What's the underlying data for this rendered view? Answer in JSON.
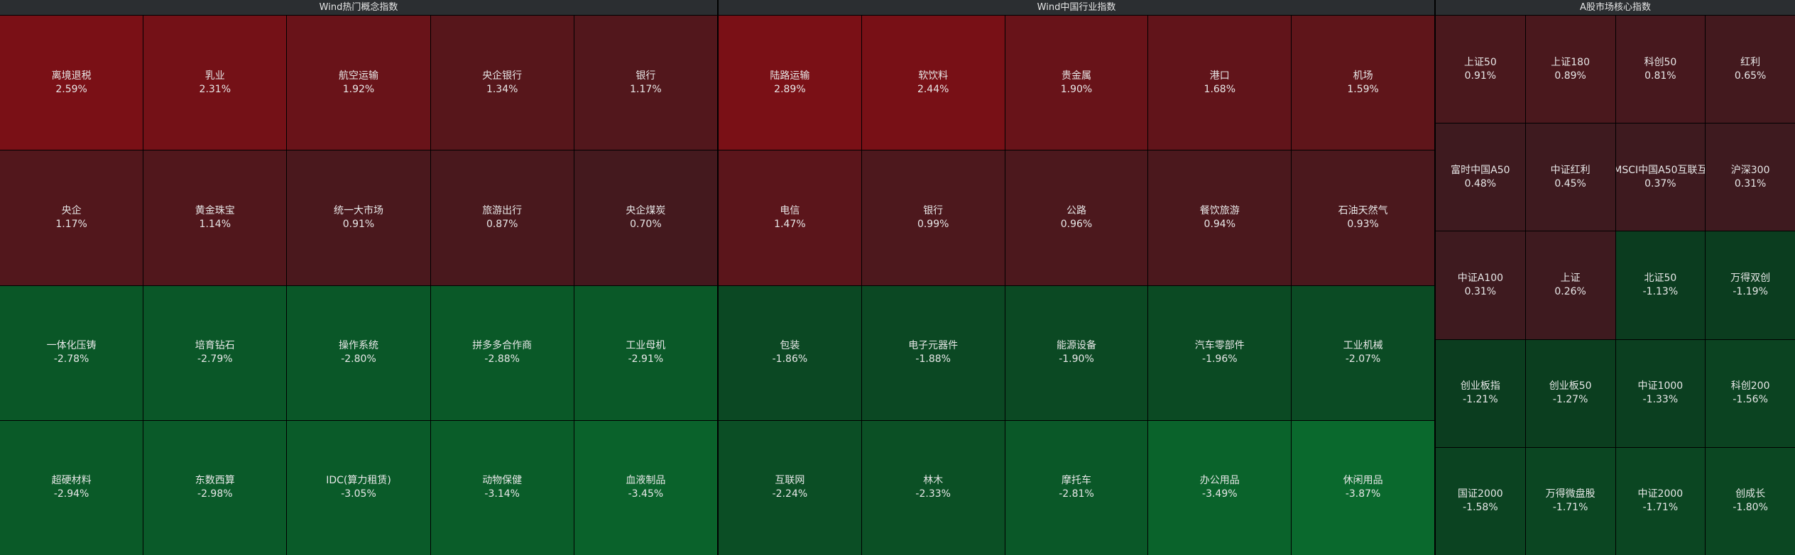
{
  "panels": [
    {
      "title": "Wind热门概念指数",
      "columns": 5,
      "cells": [
        {
          "name": "离境退税",
          "change": "2.59%"
        },
        {
          "name": "乳业",
          "change": "2.31%"
        },
        {
          "name": "航空运输",
          "change": "1.92%"
        },
        {
          "name": "央企银行",
          "change": "1.34%"
        },
        {
          "name": "银行",
          "change": "1.17%"
        },
        {
          "name": "央企",
          "change": "1.17%"
        },
        {
          "name": "黄金珠宝",
          "change": "1.14%"
        },
        {
          "name": "统一大市场",
          "change": "0.91%"
        },
        {
          "name": "旅游出行",
          "change": "0.87%"
        },
        {
          "name": "央企煤炭",
          "change": "0.70%"
        },
        {
          "name": "一体化压铸",
          "change": "-2.78%"
        },
        {
          "name": "培育钻石",
          "change": "-2.79%"
        },
        {
          "name": "操作系统",
          "change": "-2.80%"
        },
        {
          "name": "拼多多合作商",
          "change": "-2.88%"
        },
        {
          "name": "工业母机",
          "change": "-2.91%"
        },
        {
          "name": "超硬材料",
          "change": "-2.94%"
        },
        {
          "name": "东数西算",
          "change": "-2.98%"
        },
        {
          "name": "IDC(算力租赁)",
          "change": "-3.05%"
        },
        {
          "name": "动物保健",
          "change": "-3.14%"
        },
        {
          "name": "血液制品",
          "change": "-3.45%"
        }
      ]
    },
    {
      "title": "Wind中国行业指数",
      "columns": 5,
      "cells": [
        {
          "name": "陆路运输",
          "change": "2.89%"
        },
        {
          "name": "软饮料",
          "change": "2.44%"
        },
        {
          "name": "贵金属",
          "change": "1.90%"
        },
        {
          "name": "港口",
          "change": "1.68%"
        },
        {
          "name": "机场",
          "change": "1.59%"
        },
        {
          "name": "电信",
          "change": "1.47%"
        },
        {
          "name": "银行",
          "change": "0.99%"
        },
        {
          "name": "公路",
          "change": "0.96%"
        },
        {
          "name": "餐饮旅游",
          "change": "0.94%"
        },
        {
          "name": "石油天然气",
          "change": "0.93%"
        },
        {
          "name": "包装",
          "change": "-1.86%"
        },
        {
          "name": "电子元器件",
          "change": "-1.88%"
        },
        {
          "name": "能源设备",
          "change": "-1.90%"
        },
        {
          "name": "汽车零部件",
          "change": "-1.96%"
        },
        {
          "name": "工业机械",
          "change": "-2.07%"
        },
        {
          "name": "互联网",
          "change": "-2.24%"
        },
        {
          "name": "林木",
          "change": "-2.33%"
        },
        {
          "name": "摩托车",
          "change": "-2.81%"
        },
        {
          "name": "办公用品",
          "change": "-3.49%"
        },
        {
          "name": "休闲用品",
          "change": "-3.87%"
        }
      ]
    },
    {
      "title": "A股市场核心指数",
      "columns": 4,
      "cells": [
        {
          "name": "上证50",
          "change": "0.91%"
        },
        {
          "name": "上证180",
          "change": "0.89%"
        },
        {
          "name": "科创50",
          "change": "0.81%"
        },
        {
          "name": "红利",
          "change": "0.65%"
        },
        {
          "name": "富时中国A50",
          "change": "0.48%"
        },
        {
          "name": "中证红利",
          "change": "0.45%"
        },
        {
          "name": "MSCI中国A50互联互",
          "change": "0.37%"
        },
        {
          "name": "沪深300",
          "change": "0.31%"
        },
        {
          "name": "中证A100",
          "change": "0.31%"
        },
        {
          "name": "上证",
          "change": "0.26%"
        },
        {
          "name": "北证50",
          "change": "-1.13%"
        },
        {
          "name": "万得双创",
          "change": "-1.19%"
        },
        {
          "name": "创业板指",
          "change": "-1.21%"
        },
        {
          "name": "创业板50",
          "change": "-1.27%"
        },
        {
          "name": "中证1000",
          "change": "-1.33%"
        },
        {
          "name": "科创200",
          "change": "-1.56%"
        },
        {
          "name": "国证2000",
          "change": "-1.58%"
        },
        {
          "name": "万得微盘股",
          "change": "-1.71%"
        },
        {
          "name": "中证2000",
          "change": "-1.71%"
        },
        {
          "name": "创成长",
          "change": "-1.80%"
        }
      ]
    }
  ]
}
